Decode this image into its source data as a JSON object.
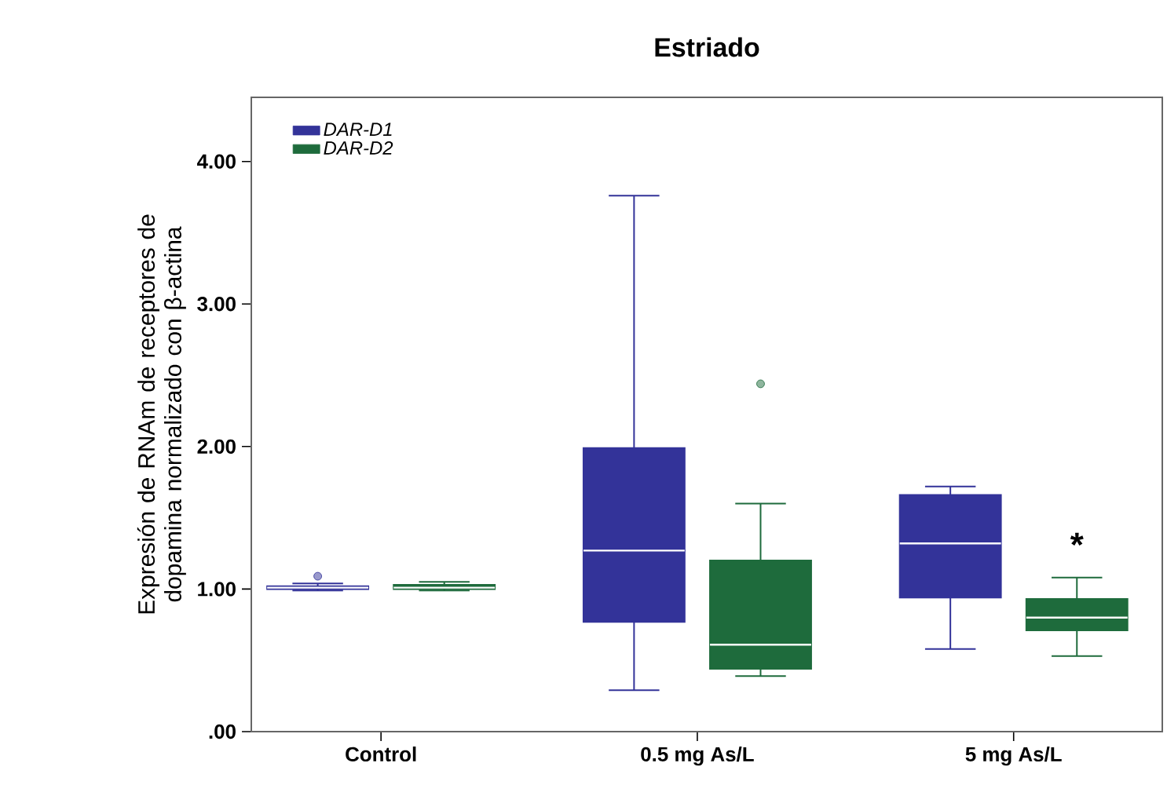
{
  "chart_data": {
    "type": "box",
    "title": "Estriado",
    "ylabel": "Expresión de RNAm de receptores de dopamina normalizado con  β-actina",
    "categories": [
      "Control",
      "0.5 mg As/L",
      "5 mg As/L"
    ],
    "series": [
      {
        "name": "DAR-D1",
        "color": "#333399",
        "boxes": [
          {
            "low": 0.99,
            "q1": 1.0,
            "median": 1.01,
            "q3": 1.02,
            "high": 1.04,
            "outliers": [
              1.09
            ]
          },
          {
            "low": 0.29,
            "q1": 0.77,
            "median": 1.27,
            "q3": 1.99,
            "high": 3.76
          },
          {
            "low": 0.58,
            "q1": 0.94,
            "median": 1.32,
            "q3": 1.66,
            "high": 1.72
          }
        ]
      },
      {
        "name": "DAR-D2",
        "color": "#1e6b3c",
        "boxes": [
          {
            "low": 0.99,
            "q1": 1.0,
            "median": 1.01,
            "q3": 1.03,
            "high": 1.05
          },
          {
            "low": 0.39,
            "q1": 0.44,
            "median": 0.61,
            "q3": 1.2,
            "high": 1.6,
            "outliers": [
              2.44
            ]
          },
          {
            "low": 0.53,
            "q1": 0.71,
            "median": 0.8,
            "q3": 0.93,
            "high": 1.08
          }
        ]
      }
    ],
    "ylim": [
      0,
      4.45
    ],
    "yticks": [
      {
        "value": 0,
        "label": ".00"
      },
      {
        "value": 1,
        "label": "1.00"
      },
      {
        "value": 2,
        "label": "2.00"
      },
      {
        "value": 3,
        "label": "3.00"
      },
      {
        "value": 4,
        "label": "4.00"
      }
    ],
    "legend": "top left",
    "grid": false,
    "annotations": [
      "*"
    ]
  }
}
